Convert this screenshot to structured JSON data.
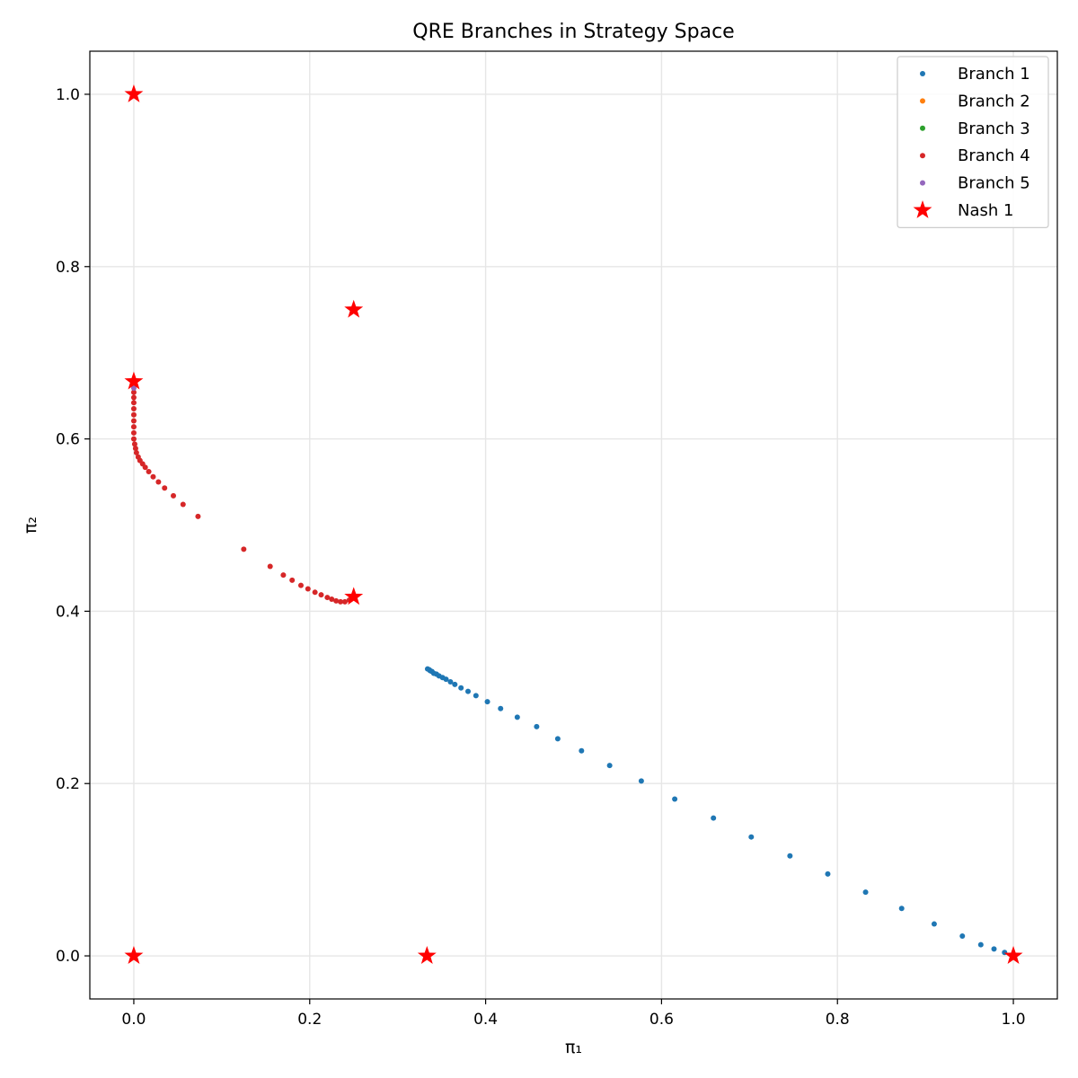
{
  "chart_data": {
    "type": "scatter",
    "title": "QRE Branches in Strategy Space",
    "xlabel": "π₁",
    "ylabel": "π₂",
    "xlim": [
      -0.05,
      1.05
    ],
    "ylim": [
      -0.05,
      1.05
    ],
    "xticks": [
      0.0,
      0.2,
      0.4,
      0.6,
      0.8,
      1.0
    ],
    "yticks": [
      0.0,
      0.2,
      0.4,
      0.6,
      0.8,
      1.0
    ],
    "xtick_labels": [
      "0.0",
      "0.2",
      "0.4",
      "0.6",
      "0.8",
      "1.0"
    ],
    "ytick_labels": [
      "0.0",
      "0.2",
      "0.4",
      "0.6",
      "0.8",
      "1.0"
    ],
    "grid": true,
    "legend_position": "top-right",
    "series": [
      {
        "name": "Branch 1",
        "color": "#1f77b4",
        "marker": "dot",
        "points": [
          [
            1.0,
            0.0
          ],
          [
            0.99,
            0.004
          ],
          [
            0.978,
            0.008
          ],
          [
            0.963,
            0.013
          ],
          [
            0.942,
            0.023
          ],
          [
            0.91,
            0.037
          ],
          [
            0.873,
            0.055
          ],
          [
            0.832,
            0.074
          ],
          [
            0.789,
            0.095
          ],
          [
            0.746,
            0.116
          ],
          [
            0.702,
            0.138
          ],
          [
            0.659,
            0.16
          ],
          [
            0.615,
            0.182
          ],
          [
            0.577,
            0.203
          ],
          [
            0.541,
            0.221
          ],
          [
            0.509,
            0.238
          ],
          [
            0.482,
            0.252
          ],
          [
            0.458,
            0.266
          ],
          [
            0.436,
            0.277
          ],
          [
            0.417,
            0.287
          ],
          [
            0.402,
            0.295
          ],
          [
            0.389,
            0.302
          ],
          [
            0.38,
            0.307
          ],
          [
            0.372,
            0.311
          ],
          [
            0.365,
            0.315
          ],
          [
            0.36,
            0.318
          ],
          [
            0.355,
            0.321
          ],
          [
            0.351,
            0.323
          ],
          [
            0.347,
            0.325
          ],
          [
            0.344,
            0.327
          ],
          [
            0.341,
            0.328
          ],
          [
            0.339,
            0.33
          ],
          [
            0.337,
            0.331
          ],
          [
            0.336,
            0.332
          ],
          [
            0.334,
            0.333
          ]
        ]
      },
      {
        "name": "Branch 2",
        "color": "#ff7f0e",
        "marker": "dot",
        "points": []
      },
      {
        "name": "Branch 3",
        "color": "#2ca02c",
        "marker": "dot",
        "points": []
      },
      {
        "name": "Branch 4",
        "color": "#d62728",
        "marker": "dot",
        "points": [
          [
            0.25,
            0.417
          ],
          [
            0.245,
            0.413
          ],
          [
            0.24,
            0.411
          ],
          [
            0.235,
            0.411
          ],
          [
            0.23,
            0.412
          ],
          [
            0.225,
            0.414
          ],
          [
            0.22,
            0.416
          ],
          [
            0.213,
            0.419
          ],
          [
            0.206,
            0.422
          ],
          [
            0.198,
            0.426
          ],
          [
            0.19,
            0.43
          ],
          [
            0.18,
            0.436
          ],
          [
            0.17,
            0.442
          ],
          [
            0.155,
            0.452
          ],
          [
            0.125,
            0.472
          ],
          [
            0.073,
            0.51
          ],
          [
            0.056,
            0.524
          ],
          [
            0.045,
            0.534
          ],
          [
            0.035,
            0.543
          ],
          [
            0.028,
            0.55
          ],
          [
            0.022,
            0.556
          ],
          [
            0.017,
            0.562
          ],
          [
            0.013,
            0.567
          ],
          [
            0.01,
            0.571
          ],
          [
            0.007,
            0.575
          ],
          [
            0.005,
            0.579
          ],
          [
            0.003,
            0.584
          ],
          [
            0.002,
            0.589
          ],
          [
            0.001,
            0.594
          ],
          [
            0.0,
            0.6
          ],
          [
            0.0,
            0.607
          ],
          [
            0.0,
            0.614
          ],
          [
            0.0,
            0.621
          ],
          [
            0.0,
            0.628
          ],
          [
            0.0,
            0.635
          ],
          [
            0.0,
            0.642
          ],
          [
            0.0,
            0.648
          ],
          [
            0.0,
            0.654
          ]
        ]
      },
      {
        "name": "Branch 5",
        "color": "#9467bd",
        "marker": "dot",
        "points": [
          [
            0.0,
            0.659
          ],
          [
            0.0,
            0.662
          ]
        ]
      },
      {
        "name": "Nash 1",
        "color": "#ff0000",
        "marker": "star",
        "points": [
          [
            0.0,
            1.0
          ],
          [
            0.25,
            0.75
          ],
          [
            0.0,
            0.6667
          ],
          [
            0.25,
            0.4167
          ],
          [
            0.0,
            0.0
          ],
          [
            0.3333,
            0.0
          ],
          [
            1.0,
            0.0
          ]
        ]
      }
    ]
  }
}
